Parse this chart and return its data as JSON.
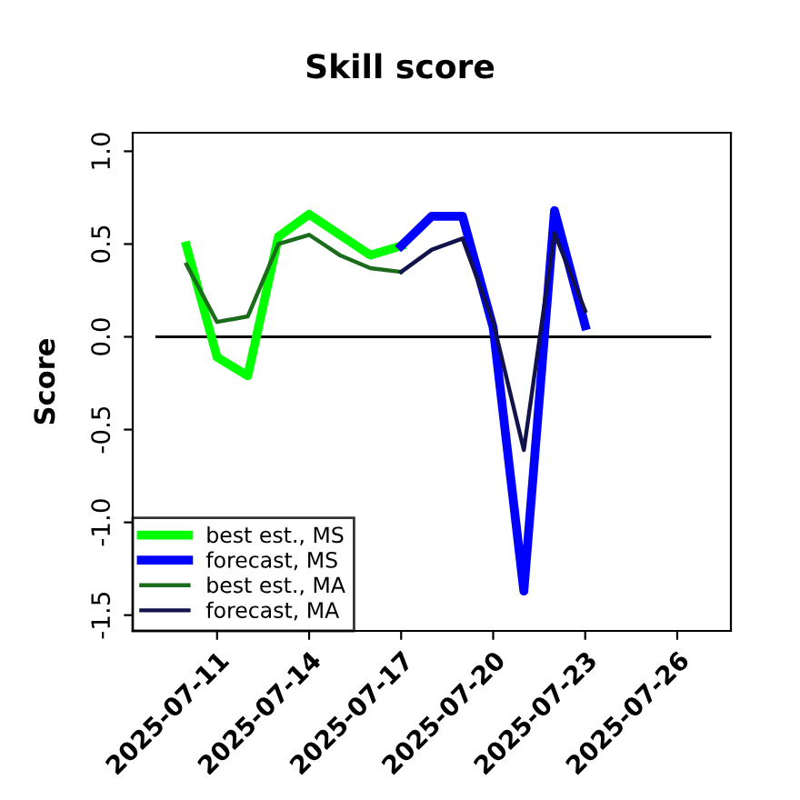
{
  "chart_data": {
    "type": "line",
    "title": "Skill score",
    "ylabel": "Score",
    "xlim": [
      "2025-07-08T06:00",
      "2025-07-27T18:00"
    ],
    "ylim": [
      -1.585,
      1.1
    ],
    "xticks": [
      "2025-07-11",
      "2025-07-14",
      "2025-07-17",
      "2025-07-20",
      "2025-07-23",
      "2025-07-26"
    ],
    "yticks": [
      -1.5,
      {
        "value": -1,
        "label": "-1.0"
      },
      -0.5,
      {
        "value": 0,
        "label": "0.0"
      },
      0.5,
      {
        "value": 1,
        "label": "1.0"
      }
    ],
    "grid": false,
    "legend": "bottom left",
    "marker": "none",
    "line_style": "solid",
    "ref_lines": [
      {
        "axis": "y",
        "value": 0,
        "color": "#000000"
      }
    ],
    "series": [
      {
        "name": "best est., MS",
        "color": "#00ff00",
        "x": [
          "2025-07-10",
          "2025-07-11",
          "2025-07-12",
          "2025-07-13",
          "2025-07-14",
          "2025-07-15",
          "2025-07-16",
          "2025-07-17"
        ],
        "values": [
          0.49,
          -0.11,
          -0.21,
          0.54,
          0.66,
          0.55,
          0.44,
          0.49
        ]
      },
      {
        "name": "forecast, MS",
        "color": "#0000ff",
        "x": [
          "2025-07-17",
          "2025-07-18",
          "2025-07-19",
          "2025-07-20",
          "2025-07-21",
          "2025-07-22",
          "2025-07-23"
        ],
        "values": [
          0.49,
          0.65,
          0.65,
          0.05,
          -1.37,
          0.68,
          0.06
        ]
      },
      {
        "name": "best est., MA",
        "color": "#1a6b1a",
        "x": [
          "2025-07-10",
          "2025-07-11",
          "2025-07-12",
          "2025-07-13",
          "2025-07-14",
          "2025-07-15",
          "2025-07-16",
          "2025-07-17"
        ],
        "values": [
          0.39,
          0.08,
          0.11,
          0.5,
          0.55,
          0.44,
          0.37,
          0.35
        ]
      },
      {
        "name": "forecast, MA",
        "color": "#12124d",
        "x": [
          "2025-07-17",
          "2025-07-18",
          "2025-07-19",
          "2025-07-20",
          "2025-07-21",
          "2025-07-22",
          "2025-07-23"
        ],
        "values": [
          0.35,
          0.47,
          0.53,
          0.08,
          -0.61,
          0.56,
          0.14
        ]
      }
    ]
  }
}
